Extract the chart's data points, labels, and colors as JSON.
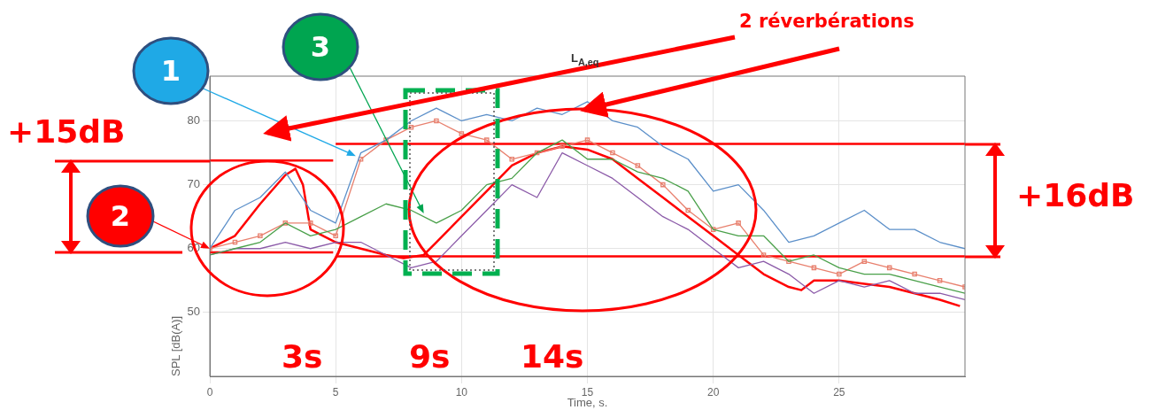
{
  "chart_data": {
    "type": "line",
    "title": "L$_{A,eq}$",
    "xlabel": "Time, s.",
    "ylabel": "SPL [dB(A)]",
    "x": [
      0,
      1,
      2,
      3,
      4,
      5,
      6,
      7,
      8,
      9,
      10,
      11,
      12,
      13,
      14,
      15,
      16,
      17,
      18,
      19,
      20,
      21,
      22,
      23,
      24,
      25,
      26,
      27,
      28,
      29,
      30
    ],
    "series": [
      {
        "color": "#5b8fc9",
        "values": [
          60,
          66,
          68,
          72,
          66,
          64,
          75,
          77,
          80,
          82,
          80,
          81,
          80,
          82,
          81,
          83,
          80,
          79,
          76,
          74,
          69,
          70,
          66,
          61,
          62,
          64,
          66,
          63,
          63,
          61,
          60
        ]
      },
      {
        "color": "#4aa04a",
        "values": [
          59,
          60,
          61,
          64,
          62,
          63,
          65,
          67,
          66,
          64,
          66,
          70,
          71,
          75,
          77,
          74,
          74,
          72,
          71,
          69,
          63,
          62,
          62,
          58,
          59,
          57,
          56,
          56,
          55,
          54,
          53
        ]
      },
      {
        "color": "#8b5aa8",
        "values": [
          59,
          60,
          60,
          61,
          60,
          61,
          61,
          59,
          57,
          58,
          62,
          66,
          70,
          68,
          75,
          73,
          71,
          68,
          65,
          63,
          60,
          57,
          58,
          56,
          53,
          55,
          54,
          55,
          53,
          53,
          52
        ]
      },
      {
        "color": "#e8806e",
        "marker": "square",
        "values": [
          60,
          61,
          62,
          64,
          64,
          62,
          74,
          77,
          79,
          80,
          78,
          77,
          74,
          75,
          76,
          77,
          75,
          73,
          70,
          66,
          63,
          64,
          59,
          58,
          57,
          56,
          58,
          57,
          56,
          55,
          54
        ]
      },
      {
        "color": "#ff0000",
        "x": [
          0,
          1,
          2,
          3,
          3.4,
          3.7,
          4,
          5,
          6,
          7,
          7.7,
          8.5,
          9,
          10,
          11,
          12,
          13,
          14,
          15,
          16,
          17,
          18,
          19,
          20,
          21,
          22,
          23,
          23.5,
          24,
          25,
          26,
          27,
          28,
          29,
          29.8
        ],
        "values": [
          60,
          62,
          67,
          71.5,
          72.5,
          70,
          63,
          61,
          60,
          59,
          58.5,
          59,
          61,
          65,
          69,
          73,
          75,
          76,
          75.5,
          74,
          71,
          68,
          65,
          62,
          59,
          56,
          54,
          53.5,
          55,
          55,
          54.5,
          54,
          53,
          52,
          51
        ]
      },
      {
        "color": "#ff0000",
        "x": [
          0,
          4.9
        ],
        "values": [
          73.8,
          73.8
        ]
      },
      {
        "color": "#ff0000",
        "x": [
          0,
          4.9
        ],
        "values": [
          59.4,
          59.4
        ]
      },
      {
        "color": "#ff0000",
        "x": [
          5,
          30
        ],
        "values": [
          76.4,
          76.4
        ]
      },
      {
        "color": "#ff0000",
        "x": [
          5,
          30
        ],
        "values": [
          58.8,
          58.8
        ]
      }
    ],
    "xlim": [
      0,
      30
    ],
    "ylim": [
      40,
      87
    ],
    "xticks": [
      0,
      5,
      10,
      15,
      20,
      25
    ],
    "yticks": [
      50,
      60,
      70,
      80
    ],
    "grid": true,
    "marker": "none",
    "annotations": [
      "+15dB",
      "+16dB",
      "2 réverbérations",
      "3s",
      "9s",
      "14s",
      {
        "text": "1",
        "x": 5.8,
        "y": 74.5
      },
      {
        "text": "2",
        "x": 0,
        "y": 60
      },
      {
        "text": "3",
        "x": 8.5,
        "y": 65.5
      }
    ]
  }
}
